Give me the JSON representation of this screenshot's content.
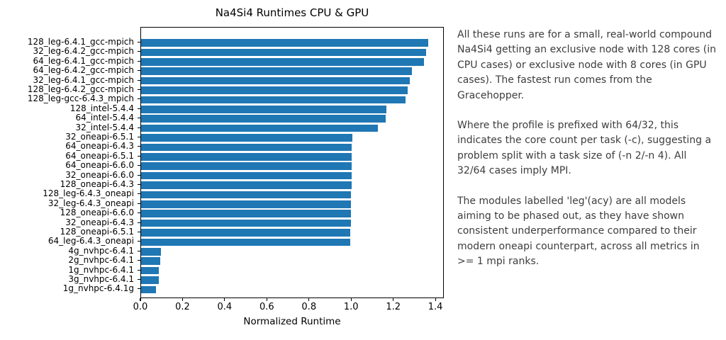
{
  "chart_data": {
    "type": "bar",
    "orientation": "horizontal",
    "title": "Na4Si4 Runtimes CPU & GPU",
    "xlabel": "Normalized Runtime",
    "xlim": [
      0,
      1.44
    ],
    "xticks": [
      0.0,
      0.2,
      0.4,
      0.6,
      0.8,
      1.0,
      1.2,
      1.4
    ],
    "bar_color": "#1f77b4",
    "grid": false,
    "legend": false,
    "categories": [
      "128_leg-6.4.1_gcc-mpich",
      "32_leg-6.4.2_gcc-mpich",
      "64_leg-6.4.1_gcc-mpich",
      "64_leg-6.4.2_gcc-mpich",
      "32_leg-6.4.1_gcc-mpich",
      "128_leg-6.4.2_gcc-mpich",
      "128_leg-gcc-6.4.3_mpich",
      "128_intel-5.4.4",
      "64_intel-5.4.4",
      "32_intel-5.4.4",
      "32_oneapi-6.5.1",
      "64_oneapi-6.4.3",
      "64_oneapi-6.5.1",
      "64_oneapi-6.6.0",
      "32_oneapi-6.6.0",
      "128_oneapi-6.4.3",
      "128_leg-6.4.3_oneapi",
      "32_leg-6.4.3_oneapi",
      "128_oneapi-6.6.0",
      "32_oneapi-6.4.3",
      "128_oneapi-6.5.1",
      "64_leg-6.4.3_oneapi",
      "4g_nvhpc-6.4.1",
      "2g_nvhpc-6.4.1",
      "1g_nvhpc-6.4.1",
      "3g_nvhpc-6.4.1",
      "1g_nvhpc-6.4.1g"
    ],
    "values": [
      1.37,
      1.36,
      1.35,
      1.29,
      1.28,
      1.27,
      1.26,
      1.17,
      1.165,
      1.13,
      1.008,
      1.005,
      1.005,
      1.004,
      1.003,
      1.003,
      1.002,
      1.002,
      1.001,
      1.0,
      0.997,
      0.996,
      0.095,
      0.09,
      0.085,
      0.084,
      0.071
    ]
  },
  "annotation": {
    "paragraphs": [
      "All these runs are for a small, real-world compound Na4Si4 getting an exclusive node with 128 cores (in CPU cases) or exclusive node with 8 cores (in GPU cases). The fastest run comes from the Gracehopper.",
      "Where the profile is prefixed with 64/32, this indicates the core count per task (-c), suggesting a problem split with a task size of (-n 2/-n 4). All 32/64 cases imply MPI.",
      "The modules labelled 'leg'(acy) are all models aiming to be phased out, as they have shown consistent underperformance compared to their modern oneapi counterpart, across all metrics in >= 1 mpi ranks."
    ]
  }
}
